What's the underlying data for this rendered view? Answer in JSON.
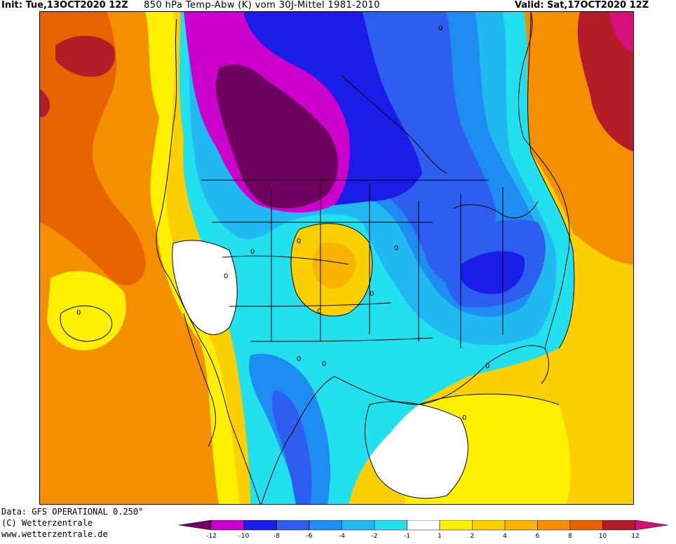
{
  "header": {
    "init": "Init: Tue,13OCT2020 12Z",
    "title": "850 hPa Temp-Abw (K) vom 30J-Mittel 1981-2010",
    "valid": "Valid: Sat,17OCT2020 12Z"
  },
  "footer": {
    "data_line": "Data: GFS OPERATIONAL 0.250°",
    "copyright": "(C) Wetterzentrale",
    "url": "www.wetterzentrale.de"
  },
  "legend": {
    "colors": [
      "#6e0060",
      "#cc00cc",
      "#1c1ce8",
      "#2e5ef0",
      "#1e8cf0",
      "#22b8f2",
      "#22e0ee",
      "#ffffff",
      "#fff000",
      "#fcd000",
      "#f8b400",
      "#f49000",
      "#e86200",
      "#b41c28",
      "#d4107a"
    ],
    "labels": [
      "-12",
      "-10",
      "-8",
      "-6",
      "-4",
      "-2",
      "-1",
      "1",
      "2",
      "4",
      "6",
      "8",
      "10",
      "12"
    ]
  },
  "contour_labels": [
    {
      "text": "0"
    },
    {
      "text": "0"
    },
    {
      "text": "0"
    },
    {
      "text": "0"
    },
    {
      "text": "0"
    },
    {
      "text": "0"
    },
    {
      "text": "0"
    },
    {
      "text": "0"
    },
    {
      "text": "0"
    },
    {
      "text": "0"
    },
    {
      "text": "0"
    },
    {
      "text": "0"
    }
  ]
}
